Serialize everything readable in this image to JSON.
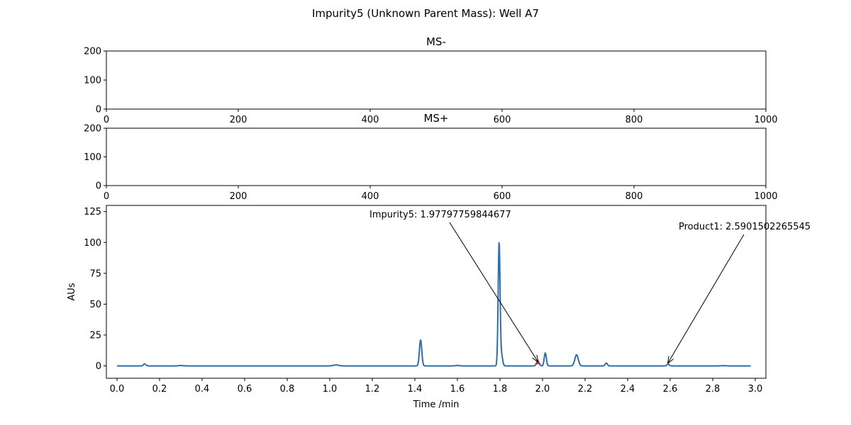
{
  "figure": {
    "title": "Impurity5 (Unknown Parent Mass): Well A7"
  },
  "colors": {
    "trace": "#2f6ea8",
    "impurity_marker": "#d62728",
    "axes": "#000000",
    "background": "#ffffff"
  },
  "chart_data": [
    {
      "type": "bar",
      "title": "MS-",
      "xlabel": "",
      "ylabel": "",
      "xlim": [
        0,
        1000
      ],
      "ylim": [
        0,
        200
      ],
      "x_ticks": [
        0,
        200,
        400,
        600,
        800,
        1000
      ],
      "y_ticks": [
        0,
        100,
        200
      ],
      "series": []
    },
    {
      "type": "bar",
      "title": "MS+",
      "xlabel": "",
      "ylabel": "",
      "xlim": [
        0,
        1000
      ],
      "ylim": [
        0,
        200
      ],
      "x_ticks": [
        0,
        200,
        400,
        600,
        800,
        1000
      ],
      "y_ticks": [
        0,
        100,
        200
      ],
      "series": []
    },
    {
      "type": "line",
      "title": "",
      "xlabel": "Time /min",
      "ylabel": "AUs",
      "xlim": [
        -0.05,
        3.05
      ],
      "ylim": [
        -10,
        130
      ],
      "x_ticks": [
        0.0,
        0.2,
        0.4,
        0.6,
        0.8,
        1.0,
        1.2,
        1.4,
        1.6,
        1.8,
        2.0,
        2.2,
        2.4,
        2.6,
        2.8,
        3.0
      ],
      "x_tick_labels": [
        "0.0",
        "0.2",
        "0.4",
        "0.6",
        "0.8",
        "1.0",
        "1.2",
        "1.4",
        "1.6",
        "1.8",
        "2.0",
        "2.2",
        "2.4",
        "2.6",
        "2.8",
        "3.0"
      ],
      "y_ticks": [
        0,
        25,
        50,
        75,
        100,
        125
      ],
      "trace": {
        "baseline": 0,
        "x_start": 0.0,
        "x_end": 2.98,
        "peaks": [
          {
            "t": 0.13,
            "h": 1.5,
            "w": 0.006
          },
          {
            "t": 0.3,
            "h": 0.3,
            "w": 0.01
          },
          {
            "t": 1.03,
            "h": 0.8,
            "w": 0.012
          },
          {
            "t": 1.427,
            "h": 21,
            "w": 0.0055
          },
          {
            "t": 1.6,
            "h": 0.4,
            "w": 0.008
          },
          {
            "t": 1.796,
            "h": 100,
            "w": 0.0045
          },
          {
            "t": 1.808,
            "h": 8,
            "w": 0.005
          },
          {
            "t": 1.978,
            "h": 4,
            "w": 0.006
          },
          {
            "t": 2.013,
            "h": 10.5,
            "w": 0.005
          },
          {
            "t": 2.16,
            "h": 9,
            "w": 0.008
          },
          {
            "t": 2.3,
            "h": 2.3,
            "w": 0.005
          },
          {
            "t": 2.59,
            "h": 1.5,
            "w": 0.005
          },
          {
            "t": 2.85,
            "h": 0.2,
            "w": 0.01
          }
        ]
      },
      "markers": [
        {
          "t": 1.97797759844677,
          "v": 2.5
        }
      ],
      "annotations": [
        {
          "label": "Impurity5: 1.97797759844677",
          "x": 1.97797759844677,
          "y": 3.5
        },
        {
          "label": "Product1: 2.5901502265545",
          "x": 2.5901502265545,
          "y": 2.5
        }
      ]
    }
  ]
}
